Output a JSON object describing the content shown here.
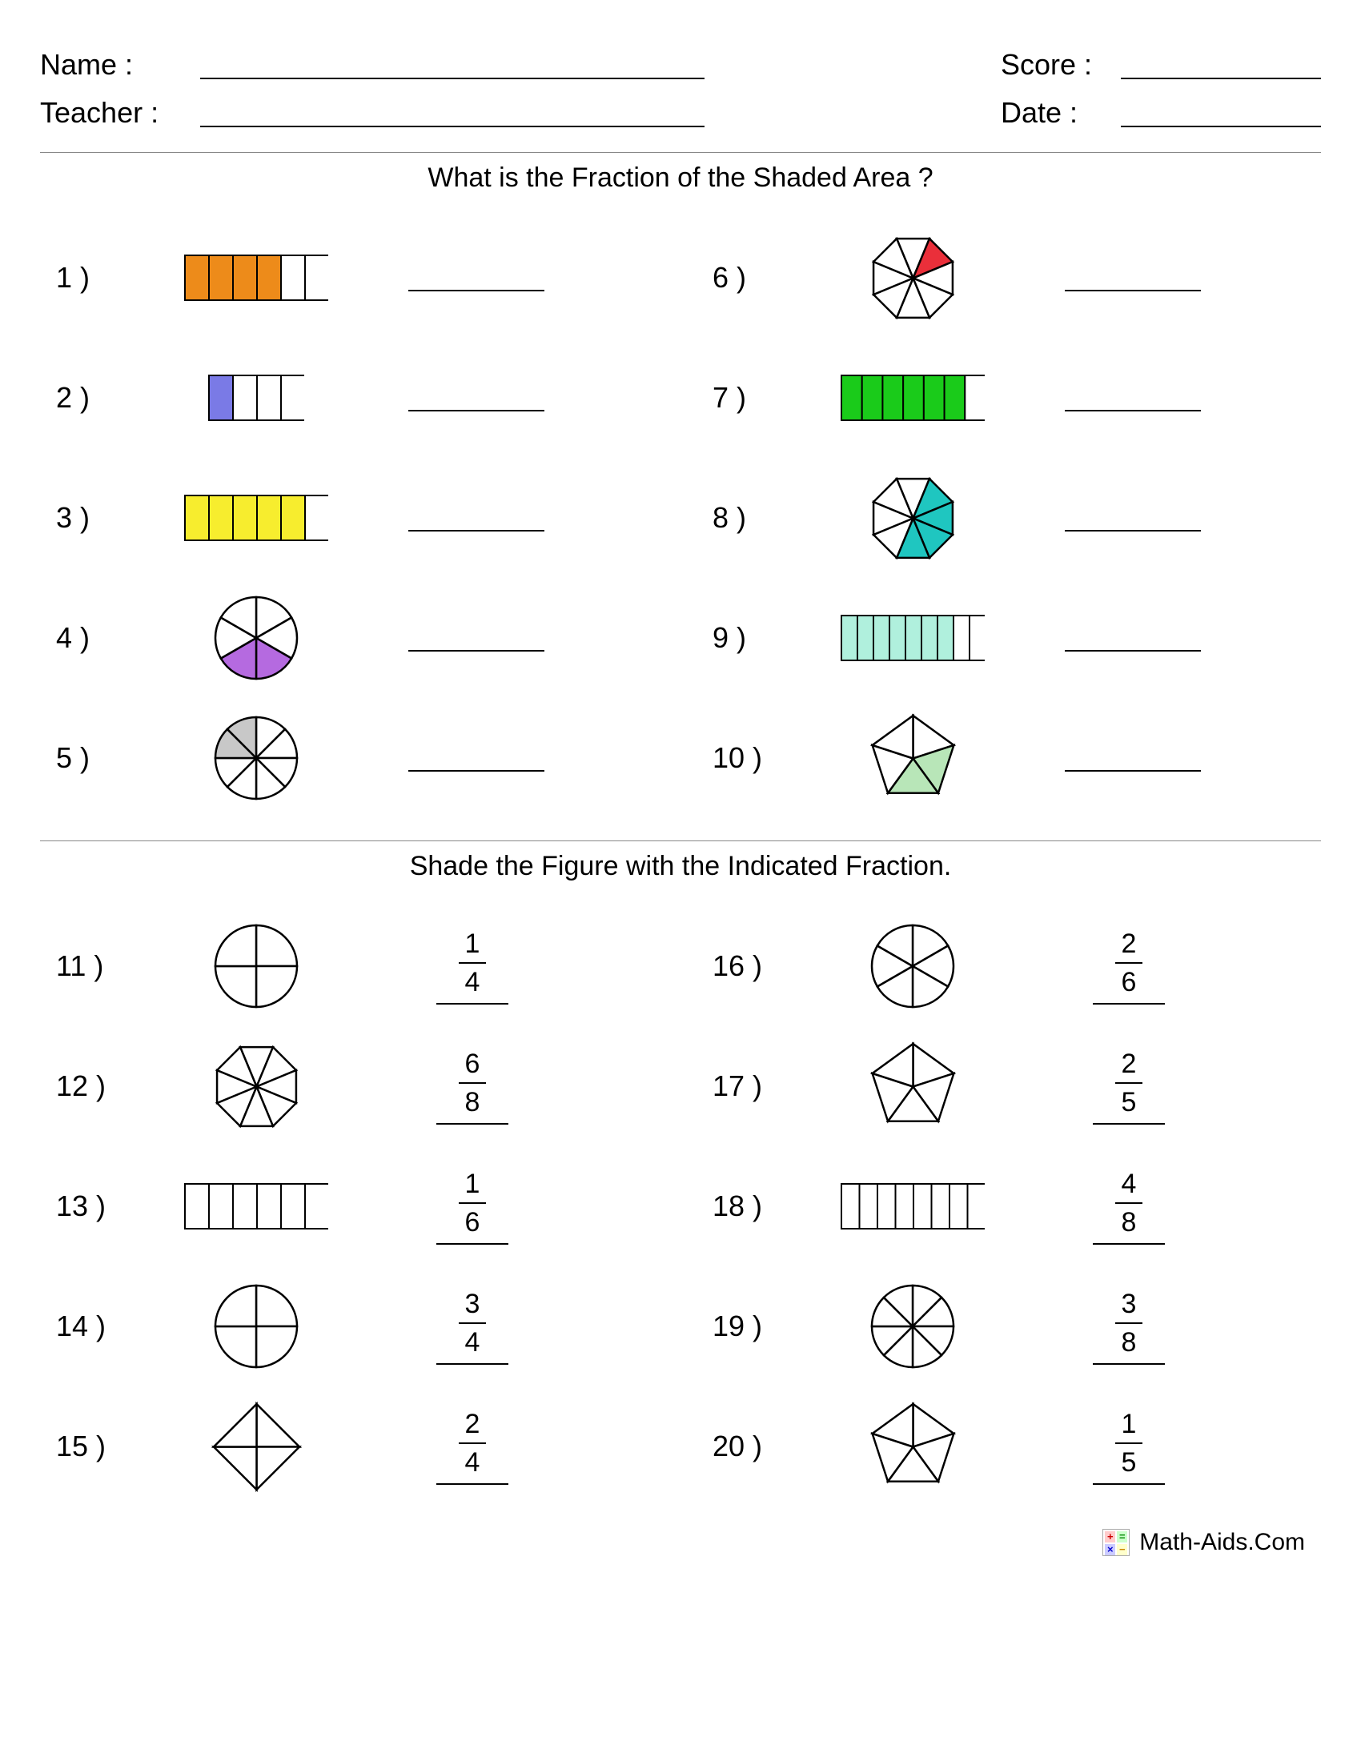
{
  "header": {
    "name_label": "Name :",
    "teacher_label": "Teacher :",
    "score_label": "Score :",
    "date_label": "Date :"
  },
  "section1": {
    "title": "What is the Fraction of the Shaded Area ?",
    "problems": [
      {
        "n": "1 )",
        "shape": "rect",
        "parts": 6,
        "shaded": 4,
        "color": "#ed8b1a"
      },
      {
        "n": "2 )",
        "shape": "rect",
        "parts": 4,
        "shaded": 1,
        "color": "#7a7ae6",
        "small": true
      },
      {
        "n": "3 )",
        "shape": "rect",
        "parts": 6,
        "shaded": 5,
        "color": "#f7ed2e"
      },
      {
        "n": "4 )",
        "shape": "circle",
        "parts": 6,
        "shaded": [
          2,
          3
        ],
        "color": "#b56ae0"
      },
      {
        "n": "5 )",
        "shape": "circle",
        "parts": 8,
        "shaded": [
          6,
          7
        ],
        "color": "#c8c8c8"
      },
      {
        "n": "6 )",
        "shape": "octagon",
        "parts": 8,
        "shaded": [
          1
        ],
        "color": "#ea2f3a"
      },
      {
        "n": "7 )",
        "shape": "rect",
        "parts": 7,
        "shaded": 6,
        "color": "#1acb1a"
      },
      {
        "n": "8 )",
        "shape": "octagon",
        "parts": 8,
        "shaded": [
          1,
          2,
          3,
          4
        ],
        "color": "#1fc6c0"
      },
      {
        "n": "9 )",
        "shape": "rect",
        "parts": 9,
        "shaded": 7,
        "color": "#b0f0dd"
      },
      {
        "n": "10 )",
        "shape": "pentagon",
        "parts": 5,
        "shaded": [
          1,
          2
        ],
        "color": "#b8e6b8"
      }
    ]
  },
  "section2": {
    "title": "Shade the Figure with the Indicated Fraction.",
    "problems": [
      {
        "n": "11 )",
        "shape": "circle",
        "parts": 4,
        "num": "1",
        "den": "4"
      },
      {
        "n": "12 )",
        "shape": "octagon",
        "parts": 8,
        "num": "6",
        "den": "8"
      },
      {
        "n": "13 )",
        "shape": "rect",
        "parts": 6,
        "num": "1",
        "den": "6"
      },
      {
        "n": "14 )",
        "shape": "circle",
        "parts": 4,
        "num": "3",
        "den": "4"
      },
      {
        "n": "15 )",
        "shape": "diamond",
        "parts": 4,
        "num": "2",
        "den": "4"
      },
      {
        "n": "16 )",
        "shape": "circle",
        "parts": 6,
        "num": "2",
        "den": "6"
      },
      {
        "n": "17 )",
        "shape": "pentagon",
        "parts": 5,
        "num": "2",
        "den": "5"
      },
      {
        "n": "18 )",
        "shape": "rect",
        "parts": 8,
        "num": "4",
        "den": "8"
      },
      {
        "n": "19 )",
        "shape": "circle",
        "parts": 8,
        "num": "3",
        "den": "8"
      },
      {
        "n": "20 )",
        "shape": "pentagon",
        "parts": 5,
        "num": "1",
        "den": "5"
      }
    ]
  },
  "footer": {
    "text": "Math-Aids.Com"
  },
  "colors": {
    "stroke": "#000000",
    "bg": "#ffffff"
  }
}
